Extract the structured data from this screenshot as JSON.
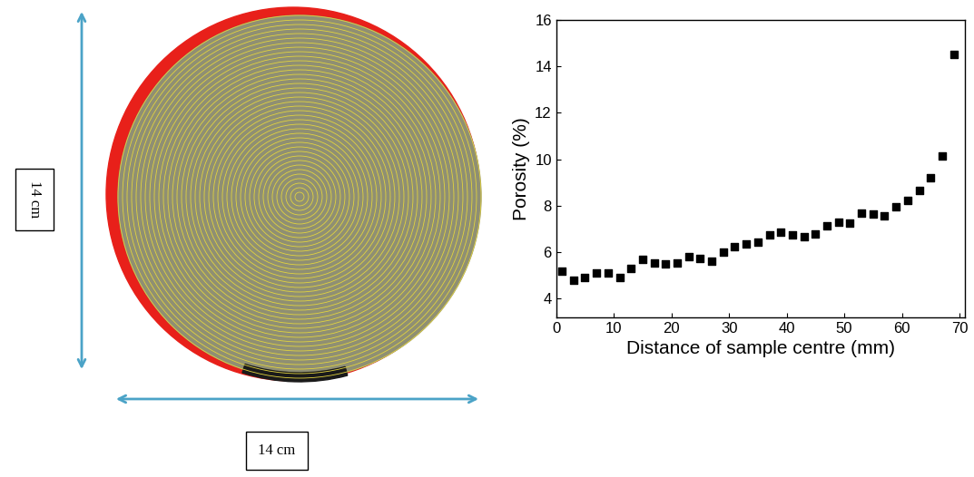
{
  "chart_data": {
    "type": "scatter",
    "x_label": "Distance of sample centre (mm)",
    "y_label": "Porosity (%)",
    "x": [
      1,
      3,
      5,
      7,
      9,
      11,
      13,
      15,
      17,
      19,
      21,
      23,
      25,
      27,
      29,
      31,
      33,
      35,
      37,
      39,
      41,
      43,
      45,
      47,
      49,
      51,
      53,
      55,
      57,
      59,
      61,
      63,
      65,
      67,
      69
    ],
    "values": [
      5.2,
      4.8,
      4.9,
      5.1,
      5.1,
      4.9,
      5.3,
      5.7,
      5.55,
      5.5,
      5.55,
      5.8,
      5.75,
      5.6,
      6.0,
      6.25,
      6.35,
      6.45,
      6.75,
      6.85,
      6.75,
      6.65,
      6.8,
      7.15,
      7.3,
      7.25,
      7.7,
      7.65,
      7.55,
      7.95,
      8.25,
      8.65,
      9.2,
      10.15,
      14.5
    ],
    "color": "#000000",
    "marker": "square",
    "xlim": [
      0,
      71
    ],
    "xticks": [
      0,
      10,
      20,
      30,
      40,
      50,
      60,
      70
    ],
    "ylim": [
      3.2,
      16
    ],
    "yticks": [
      4,
      6,
      8,
      10,
      12,
      14,
      16
    ],
    "grid": false
  },
  "sample_image": {
    "height_label": "14 cm",
    "width_label": "14 cm"
  }
}
